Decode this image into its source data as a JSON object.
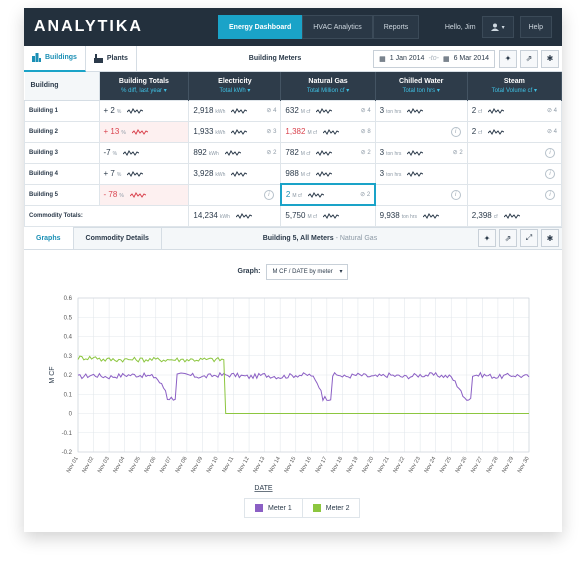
{
  "app": {
    "logo": "ANALYTIKA",
    "greeting": "Hello, Jim",
    "help": "Help"
  },
  "nav": [
    "Energy Dashboard",
    "HVAC Analytics",
    "Reports"
  ],
  "subbar": {
    "tabs": [
      "Buildings",
      "Plants"
    ],
    "title": "Building Meters",
    "date_from": "1 Jan 2014",
    "date_sep": "-to-",
    "date_to": "6 Mar 2014"
  },
  "table": {
    "headers": [
      {
        "title": "Building",
        "sub": ""
      },
      {
        "title": "Building Totals",
        "sub": "% diff, last year"
      },
      {
        "title": "Electricity",
        "sub": "Total kWh"
      },
      {
        "title": "Natural Gas",
        "sub": "Total Million cf"
      },
      {
        "title": "Chilled Water",
        "sub": "Total ton hrs"
      },
      {
        "title": "Steam",
        "sub": "Total Volume cf"
      }
    ],
    "rows": [
      {
        "name": "Building 1",
        "total": "+ 2",
        "total_unit": "%",
        "elec": "2,918",
        "elec_unit": "kWh",
        "elec_alarm": "4",
        "gas": "632",
        "gas_unit": "M cf",
        "gas_alarm": "4",
        "cw": "3",
        "cw_unit": "ton hrs",
        "cw_alarm": "",
        "steam": "2",
        "steam_unit": "cf",
        "steam_alarm": "4"
      },
      {
        "name": "Building 2",
        "total": "+ 13",
        "total_unit": "%",
        "elec": "1,933",
        "elec_unit": "kWh",
        "elec_alarm": "3",
        "gas": "1,382",
        "gas_unit": "M cf",
        "gas_alarm": "8",
        "cw": "",
        "cw_unit": "",
        "cw_alarm": "",
        "steam": "2",
        "steam_unit": "cf",
        "steam_alarm": "4"
      },
      {
        "name": "Building 3",
        "total": "-7",
        "total_unit": "%",
        "elec": "892",
        "elec_unit": "kWh",
        "elec_alarm": "2",
        "gas": "782",
        "gas_unit": "M cf",
        "gas_alarm": "2",
        "cw": "3",
        "cw_unit": "ton hrs",
        "cw_alarm": "2",
        "steam": "",
        "steam_unit": "",
        "steam_alarm": ""
      },
      {
        "name": "Building 4",
        "total": "+ 7",
        "total_unit": "%",
        "elec": "3,928",
        "elec_unit": "kWh",
        "elec_alarm": "",
        "gas": "988",
        "gas_unit": "M cf",
        "gas_alarm": "",
        "cw": "3",
        "cw_unit": "ton hrs",
        "cw_alarm": "",
        "steam": "",
        "steam_unit": "",
        "steam_alarm": ""
      },
      {
        "name": "Building 5",
        "total": "- 78",
        "total_unit": "%",
        "elec": "",
        "elec_unit": "",
        "elec_alarm": "",
        "gas": "2",
        "gas_unit": "M cf",
        "gas_alarm": "2",
        "cw": "",
        "cw_unit": "",
        "cw_alarm": "",
        "steam": "",
        "steam_unit": "",
        "steam_alarm": ""
      }
    ],
    "totals": {
      "name": "Commodity Totals:",
      "elec": "14,234",
      "elec_unit": "kWh",
      "gas": "5,750",
      "gas_unit": "M cf",
      "cw": "9,938",
      "cw_unit": "ton hrs",
      "steam": "2,398",
      "steam_unit": "cf"
    }
  },
  "bottom": {
    "tabs": [
      "Graphs",
      "Commodity Details"
    ],
    "title": "Building 5, All Meters",
    "title_sub": "- Natural Gas",
    "graph_label": "Graph:",
    "graph_select": "M CF / DATE by meter"
  },
  "chart_data": {
    "type": "line",
    "xlabel": "DATE",
    "ylabel": "M CF",
    "ylim": [
      -0.2,
      0.6
    ],
    "yticks": [
      "0.6",
      "0.5",
      "0.4",
      "0.3",
      "0.2",
      "0.1",
      "0",
      "-0.1",
      "-0.2"
    ],
    "categories": [
      "Nov 01",
      "Nov 02",
      "Nov 03",
      "Nov 04",
      "Nov 05",
      "Nov 06",
      "Nov 07",
      "Nov 08",
      "Nov 09",
      "Nov 10",
      "Nov 11",
      "Nov 12",
      "Nov 13",
      "Nov 14",
      "Nov 15",
      "Nov 16",
      "Nov 17",
      "Nov 18",
      "Nov 19",
      "Nov 20",
      "Nov 21",
      "Nov 22",
      "Nov 23",
      "Nov 24",
      "Nov 25",
      "Nov 26",
      "Nov 27",
      "Nov 28",
      "Nov 29",
      "Nov 30"
    ],
    "series": [
      {
        "name": "Meter 1",
        "color": "#8b5fc4",
        "values": [
          0.19,
          0.2,
          0.19,
          0.2,
          0.2,
          0.19,
          0.08,
          0.2,
          0.19,
          0.2,
          0.2,
          0.19,
          0.2,
          0.19,
          0.2,
          0.2,
          0.08,
          0.19,
          0.2,
          0.19,
          0.2,
          0.19,
          0.2,
          0.2,
          0.19,
          0.08,
          0.2,
          0.19,
          0.2,
          0.19
        ]
      },
      {
        "name": "Meter 2",
        "color": "#8cc63f",
        "values": [
          0.29,
          0.29,
          0.28,
          0.28,
          0.28,
          0.28,
          0.28,
          0.28,
          0.28,
          0.28,
          0.0,
          0.0,
          0.0,
          0.0,
          0.0,
          0.0,
          0.0,
          0.0,
          0.0,
          0.0,
          0.0,
          0.0,
          0.0,
          0.0,
          0.0,
          0.0,
          0.0,
          0.0,
          0.0,
          0.0
        ]
      }
    ]
  }
}
